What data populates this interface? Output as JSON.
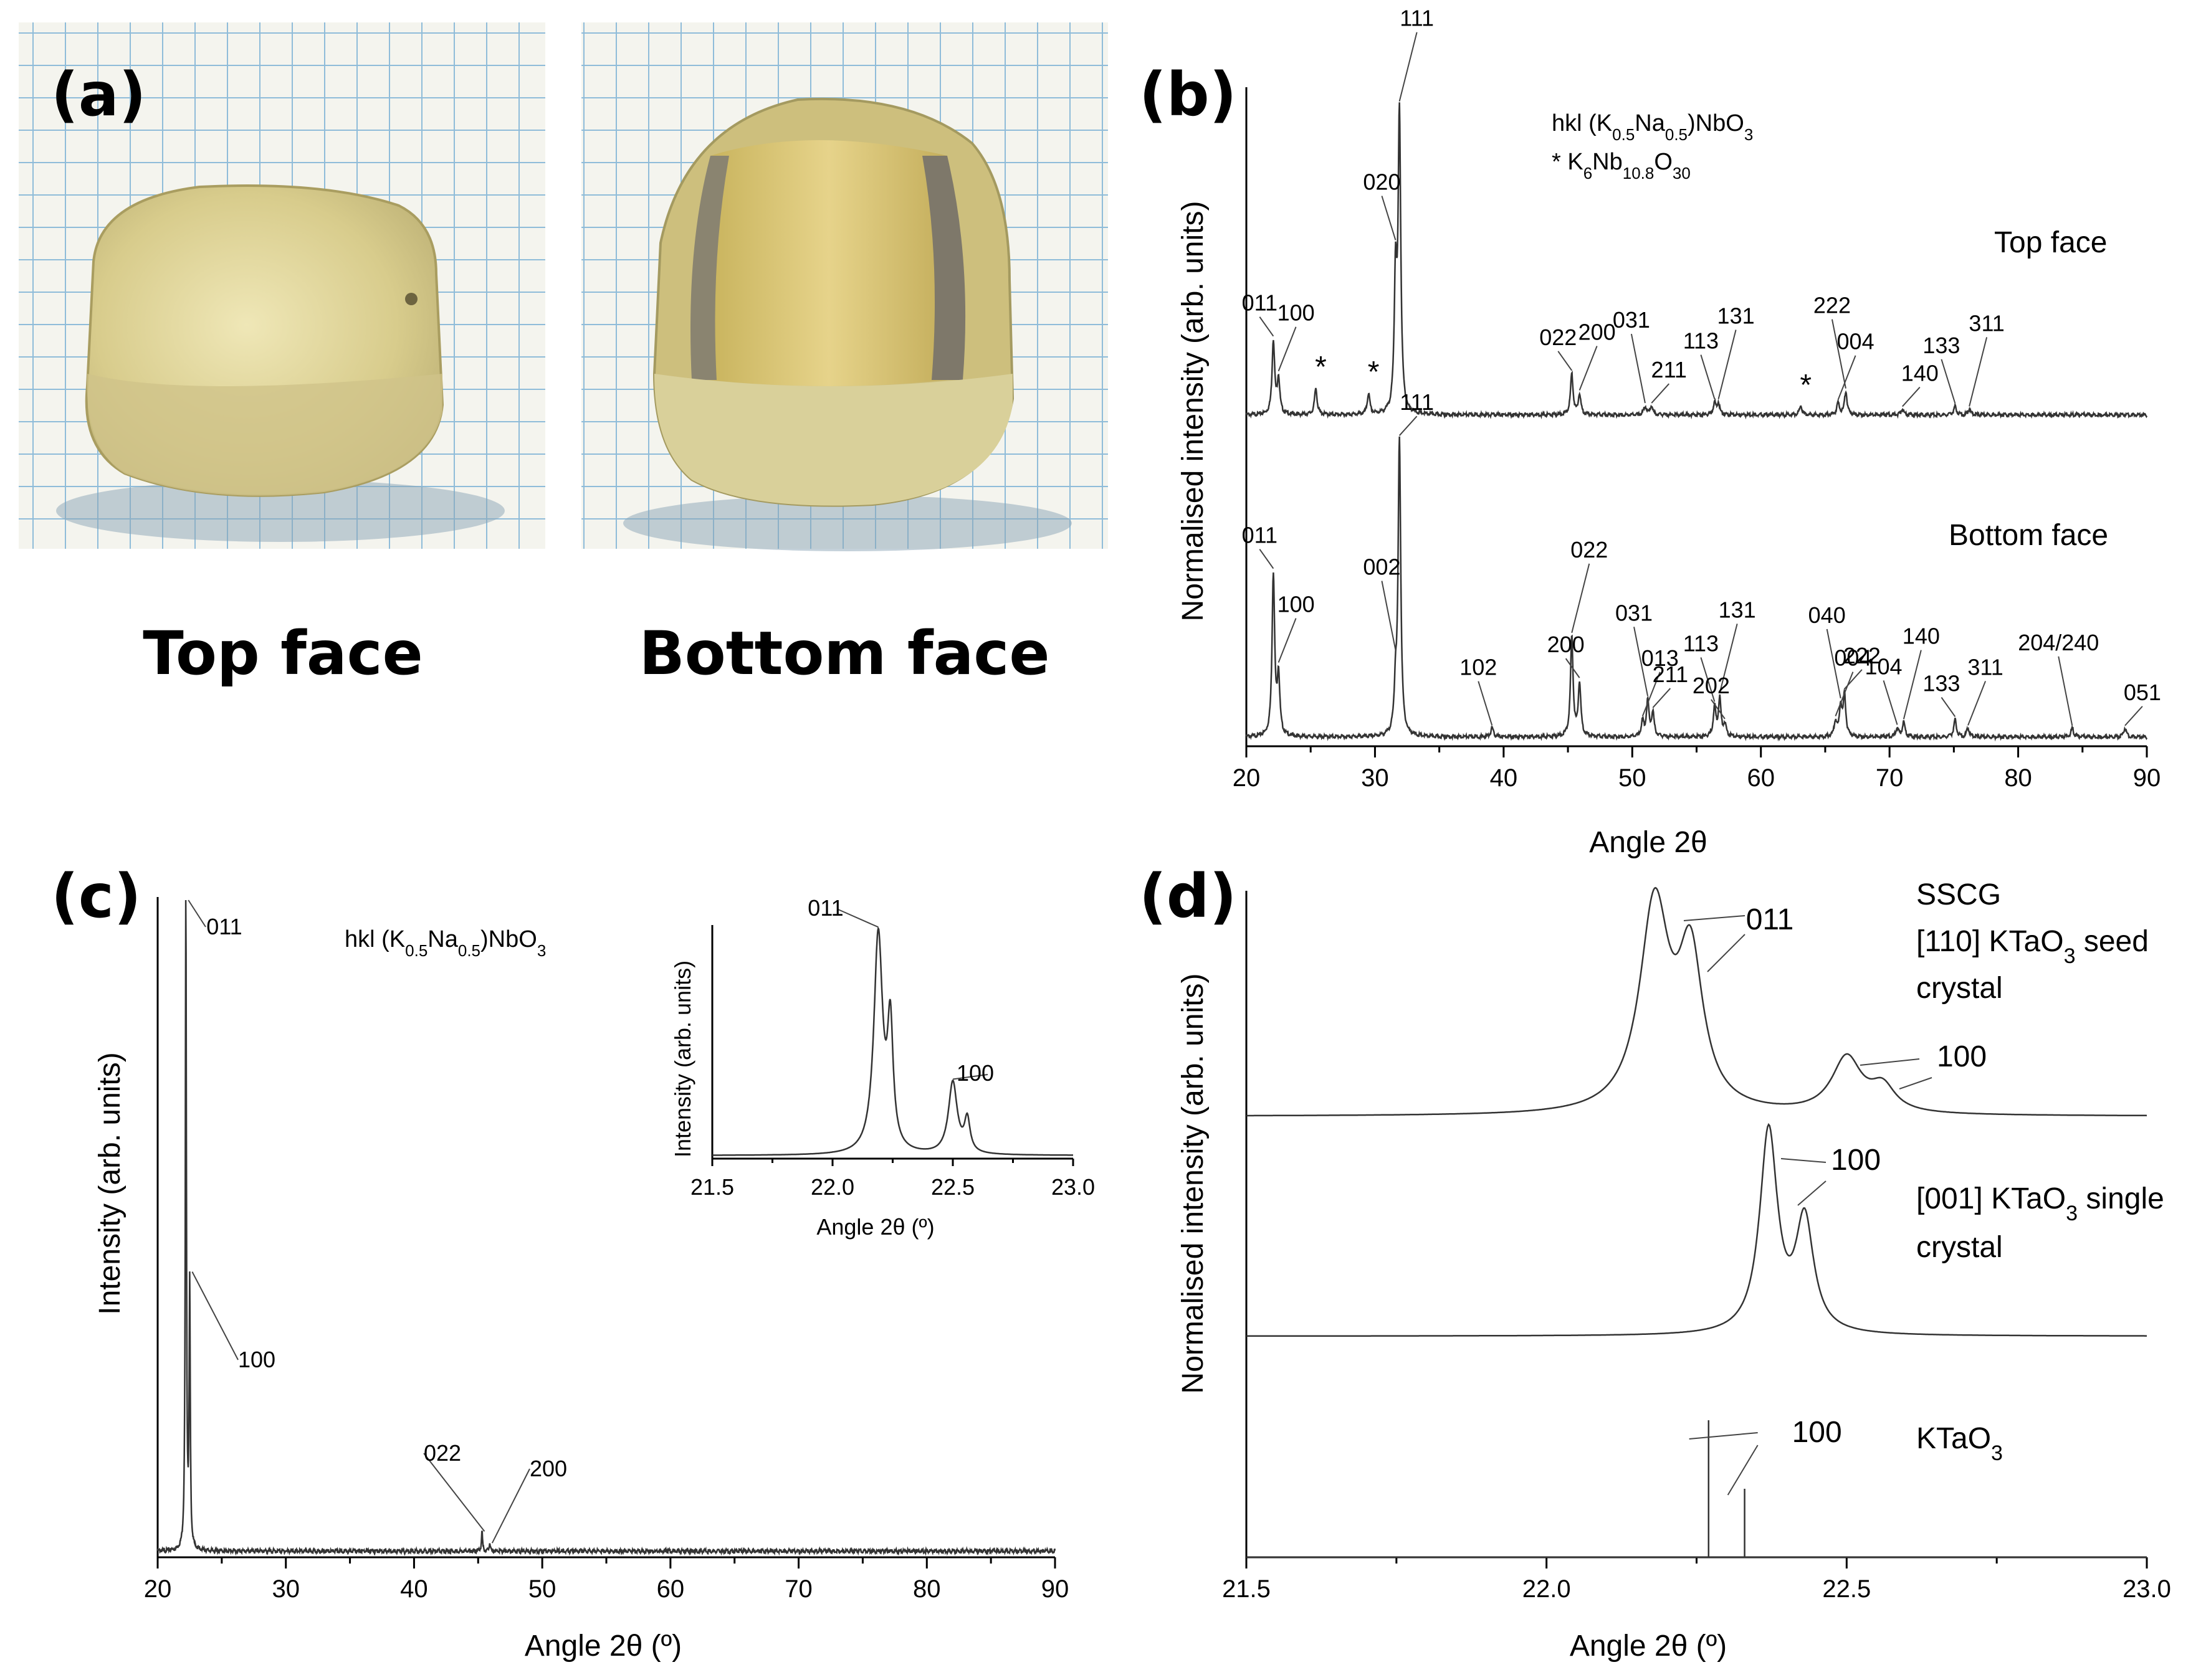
{
  "panels": {
    "a": {
      "label": "(a)",
      "captions": [
        "Top face",
        "Bottom face"
      ]
    },
    "b": {
      "label": "(b)"
    },
    "c": {
      "label": "(c)"
    },
    "d": {
      "label": "(d)"
    }
  },
  "chart_data": [
    {
      "id": "b",
      "type": "line",
      "xlabel": "Angle 2θ",
      "ylabel": "Normalised intensity (arb. units)",
      "xlim": [
        20,
        90
      ],
      "xticks": [
        "20",
        "30",
        "40",
        "50",
        "60",
        "70",
        "80",
        "90"
      ],
      "legend": [
        "hkl (K0.5Na0.5)NbO3",
        "* K6Nb10.8O30"
      ],
      "series": [
        {
          "name": "Top face",
          "peaks": [
            [
              22.1,
              0.25
            ],
            [
              22.5,
              0.12
            ],
            [
              25.4,
              0.09
            ],
            [
              29.5,
              0.07
            ],
            [
              31.6,
              0.45
            ],
            [
              31.9,
              1.0
            ],
            [
              45.3,
              0.14
            ],
            [
              45.9,
              0.07
            ],
            [
              51.0,
              0.03
            ],
            [
              51.5,
              0.03
            ],
            [
              56.4,
              0.04
            ],
            [
              56.7,
              0.04
            ],
            [
              63.1,
              0.03
            ],
            [
              66.0,
              0.04
            ],
            [
              66.6,
              0.08
            ],
            [
              71.0,
              0.02
            ],
            [
              75.1,
              0.03
            ],
            [
              76.2,
              0.02
            ]
          ],
          "labels": [
            {
              "text": "011",
              "x": 22.1
            },
            {
              "text": "100",
              "x": 22.5
            },
            {
              "text": "*",
              "x": 25.4
            },
            {
              "text": "*",
              "x": 29.5
            },
            {
              "text": "020",
              "x": 31.6
            },
            {
              "text": "111",
              "x": 31.9
            },
            {
              "text": "022",
              "x": 45.3
            },
            {
              "text": "200",
              "x": 45.9
            },
            {
              "text": "031",
              "x": 51.0
            },
            {
              "text": "211",
              "x": 51.5
            },
            {
              "text": "113",
              "x": 56.4
            },
            {
              "text": "131",
              "x": 56.7
            },
            {
              "text": "*",
              "x": 63.1
            },
            {
              "text": "004",
              "x": 66.0
            },
            {
              "text": "222",
              "x": 66.6
            },
            {
              "text": "140",
              "x": 71.0
            },
            {
              "text": "133",
              "x": 75.1
            },
            {
              "text": "311",
              "x": 76.2
            }
          ]
        },
        {
          "name": "Bottom face",
          "peaks": [
            [
              22.1,
              0.55
            ],
            [
              22.5,
              0.2
            ],
            [
              31.6,
              0.15
            ],
            [
              31.9,
              1.0
            ],
            [
              39.1,
              0.03
            ],
            [
              45.3,
              0.34
            ],
            [
              45.9,
              0.18
            ],
            [
              50.8,
              0.05
            ],
            [
              51.2,
              0.12
            ],
            [
              51.6,
              0.08
            ],
            [
              56.4,
              0.1
            ],
            [
              56.8,
              0.13
            ],
            [
              57.2,
              0.04
            ],
            [
              65.8,
              0.05
            ],
            [
              66.2,
              0.1
            ],
            [
              66.5,
              0.14
            ],
            [
              70.6,
              0.03
            ],
            [
              71.1,
              0.05
            ],
            [
              75.1,
              0.06
            ],
            [
              76.1,
              0.03
            ],
            [
              84.2,
              0.03
            ],
            [
              88.3,
              0.03
            ]
          ],
          "labels": [
            {
              "text": "011",
              "x": 22.1
            },
            {
              "text": "100",
              "x": 22.5
            },
            {
              "text": "002",
              "x": 31.6
            },
            {
              "text": "111",
              "x": 31.9
            },
            {
              "text": "102",
              "x": 39.1
            },
            {
              "text": "022",
              "x": 45.3
            },
            {
              "text": "200",
              "x": 45.9
            },
            {
              "text": "013",
              "x": 50.8
            },
            {
              "text": "031",
              "x": 51.2
            },
            {
              "text": "211",
              "x": 51.6
            },
            {
              "text": "113",
              "x": 56.4
            },
            {
              "text": "131",
              "x": 56.8
            },
            {
              "text": "202",
              "x": 57.2
            },
            {
              "text": "004",
              "x": 65.8
            },
            {
              "text": "040",
              "x": 66.2
            },
            {
              "text": "222",
              "x": 66.5
            },
            {
              "text": "104",
              "x": 70.6
            },
            {
              "text": "140",
              "x": 71.1
            },
            {
              "text": "133",
              "x": 75.1
            },
            {
              "text": "311",
              "x": 76.1
            },
            {
              "text": "204/240",
              "x": 84.2
            },
            {
              "text": "051",
              "x": 88.3
            }
          ]
        }
      ]
    },
    {
      "id": "c",
      "type": "line",
      "xlabel": "Angle 2θ (º)",
      "ylabel": "Intensity (arb. units)",
      "xlim": [
        20,
        90
      ],
      "xticks": [
        "20",
        "30",
        "40",
        "50",
        "60",
        "70",
        "80",
        "90"
      ],
      "legend": [
        "hkl (K0.5Na0.5)NbO3"
      ],
      "series": [
        {
          "peaks": [
            [
              22.2,
              1.0
            ],
            [
              22.5,
              0.4
            ],
            [
              45.3,
              0.03
            ],
            [
              45.9,
              0.012
            ]
          ],
          "labels": [
            {
              "text": "011",
              "x": 22.2
            },
            {
              "text": "100",
              "x": 22.5
            },
            {
              "text": "022",
              "x": 45.3
            },
            {
              "text": "200",
              "x": 45.9
            }
          ]
        }
      ],
      "inset": {
        "xlabel": "Angle 2θ (º)",
        "ylabel": "Intensity (arb. units)",
        "xlim": [
          21.5,
          23.0
        ],
        "xticks": [
          "21.5",
          "22.0",
          "22.5",
          "23.0"
        ],
        "peaks": [
          [
            22.19,
            1.0,
            0.022
          ],
          [
            22.24,
            0.55,
            0.014
          ],
          [
            22.5,
            0.33,
            0.022
          ],
          [
            22.56,
            0.15,
            0.014
          ]
        ],
        "labels": [
          {
            "text": "011",
            "x": 22.19
          },
          {
            "text": "100",
            "x": 22.5
          }
        ]
      }
    },
    {
      "id": "d",
      "type": "line",
      "xlabel": "Angle 2θ (º)",
      "ylabel": "Normalised intensity (arb. units)",
      "xlim": [
        21.5,
        23.0
      ],
      "xticks": [
        "21.5",
        "22.0",
        "22.5",
        "23.0"
      ],
      "series": [
        {
          "name": "SSCG [110] KTaO3 seed crystal",
          "peaks": [
            [
              22.18,
              1.0,
              0.03
            ],
            [
              22.24,
              0.72,
              0.025
            ],
            [
              22.5,
              0.27,
              0.03
            ],
            [
              22.56,
              0.12,
              0.025
            ]
          ],
          "labels": [
            {
              "text": "011",
              "x": 22.21
            },
            {
              "text": "100",
              "x": 22.53
            }
          ]
        },
        {
          "name": "[001] KTaO3 single crystal",
          "peaks": [
            [
              22.37,
              1.0,
              0.018
            ],
            [
              22.43,
              0.55,
              0.018
            ]
          ],
          "labels": [
            {
              "text": "100",
              "x": 22.4
            }
          ]
        },
        {
          "name": "KTaO3",
          "sticks": [
            [
              22.27,
              1.0
            ],
            [
              22.33,
              0.5
            ]
          ],
          "labels": [
            {
              "text": "100",
              "x": 22.3
            }
          ]
        }
      ]
    }
  ]
}
